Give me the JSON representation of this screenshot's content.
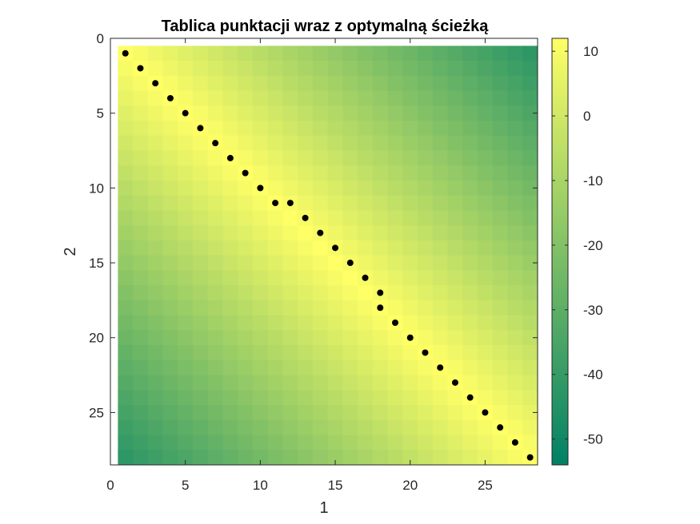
{
  "chart_data": {
    "type": "heatmap",
    "title": "Tablica punktacji wraz z optymalną ścieżką",
    "xlabel": "1",
    "ylabel": "2",
    "rows": 28,
    "cols": 28,
    "xlim": [
      0,
      28.5
    ],
    "ylim": [
      0,
      28.5
    ],
    "y_direction": "reversed",
    "x_ticks": [
      0,
      5,
      10,
      15,
      20,
      25
    ],
    "x_tick_labels": [
      "0",
      "5",
      "10",
      "15",
      "20",
      "25"
    ],
    "y_ticks": [
      0,
      5,
      10,
      15,
      20,
      25
    ],
    "y_tick_labels": [
      "0",
      "5",
      "10",
      "15",
      "20",
      "25"
    ],
    "colormap": "summer (green to yellow)",
    "color_low": "#008066",
    "color_high": "#ffff66",
    "cell_value_formula": "12 - 2 * abs(row - col)",
    "clim": [
      -54,
      12
    ],
    "colorbar": {
      "ticks": [
        10,
        0,
        -10,
        -20,
        -30,
        -40,
        -50
      ],
      "tick_labels": [
        "10",
        "0",
        "-10",
        "-20",
        "-30",
        "-40",
        "-50"
      ]
    },
    "path": [
      {
        "x": 1,
        "y": 1
      },
      {
        "x": 2,
        "y": 2
      },
      {
        "x": 3,
        "y": 3
      },
      {
        "x": 4,
        "y": 4
      },
      {
        "x": 5,
        "y": 5
      },
      {
        "x": 6,
        "y": 6
      },
      {
        "x": 7,
        "y": 7
      },
      {
        "x": 8,
        "y": 8
      },
      {
        "x": 9,
        "y": 9
      },
      {
        "x": 10,
        "y": 10
      },
      {
        "x": 11,
        "y": 11
      },
      {
        "x": 12,
        "y": 11
      },
      {
        "x": 13,
        "y": 12
      },
      {
        "x": 14,
        "y": 13
      },
      {
        "x": 15,
        "y": 14
      },
      {
        "x": 16,
        "y": 15
      },
      {
        "x": 17,
        "y": 16
      },
      {
        "x": 18,
        "y": 17
      },
      {
        "x": 18,
        "y": 18
      },
      {
        "x": 19,
        "y": 19
      },
      {
        "x": 20,
        "y": 20
      },
      {
        "x": 21,
        "y": 21
      },
      {
        "x": 22,
        "y": 22
      },
      {
        "x": 23,
        "y": 23
      },
      {
        "x": 24,
        "y": 24
      },
      {
        "x": 25,
        "y": 25
      },
      {
        "x": 26,
        "y": 26
      },
      {
        "x": 27,
        "y": 27
      },
      {
        "x": 28,
        "y": 28
      }
    ],
    "path_color": "#000000"
  }
}
